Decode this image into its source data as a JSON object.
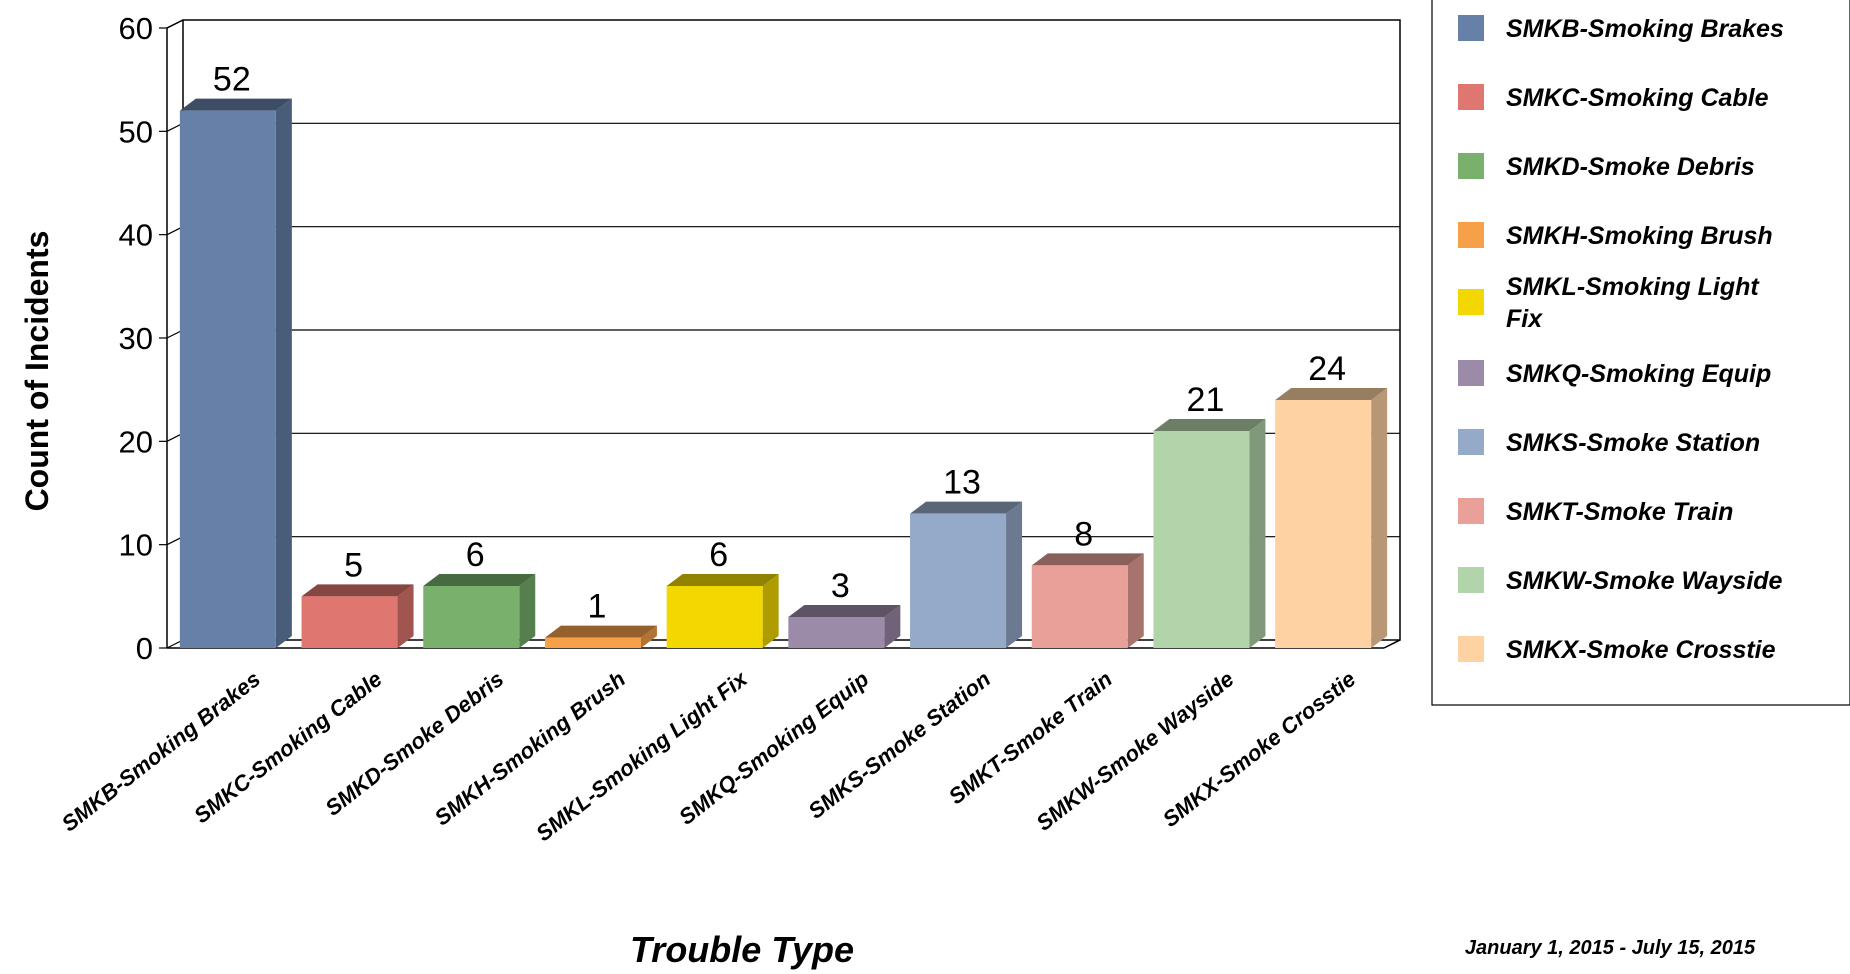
{
  "chart_data": {
    "type": "bar",
    "categories": [
      "SMKB-Smoking Brakes",
      "SMKC-Smoking  Cable",
      "SMKD-Smoke Debris",
      "SMKH-Smoking Brush",
      "SMKL-Smoking Light Fix",
      "SMKQ-Smoking Equip",
      "SMKS-Smoke Station",
      "SMKT-Smoke Train",
      "SMKW-Smoke Wayside",
      "SMKX-Smoke Crosstie"
    ],
    "values": [
      52,
      5,
      6,
      1,
      6,
      3,
      13,
      8,
      21,
      24
    ],
    "colors": [
      "#6680a8",
      "#e07670",
      "#78b06c",
      "#f7a04a",
      "#f2d800",
      "#9b8aa8",
      "#94aac8",
      "#e8a098",
      "#b2d4aa",
      "#fed2a2"
    ],
    "xlabel": "Trouble Type",
    "ylabel": "Count of Incidents",
    "ylim": [
      0,
      60
    ],
    "yticks": [
      0,
      10,
      20,
      30,
      40,
      50,
      60
    ],
    "grid": true,
    "three_d": true,
    "data_labels": true,
    "legend": {
      "position": "right",
      "entries": [
        [
          "SMKB-Smoking Brakes"
        ],
        [
          "SMKC-Smoking  Cable"
        ],
        [
          "SMKD-Smoke Debris"
        ],
        [
          "SMKH-Smoking Brush"
        ],
        [
          "SMKL-Smoking Light",
          "Fix"
        ],
        [
          "SMKQ-Smoking Equip"
        ],
        [
          "SMKS-Smoke Station"
        ],
        [
          "SMKT-Smoke Train"
        ],
        [
          "SMKW-Smoke Wayside"
        ],
        [
          "SMKX-Smoke Crosstie"
        ]
      ]
    },
    "footnote": "January 1, 2015 - July 15, 2015"
  }
}
